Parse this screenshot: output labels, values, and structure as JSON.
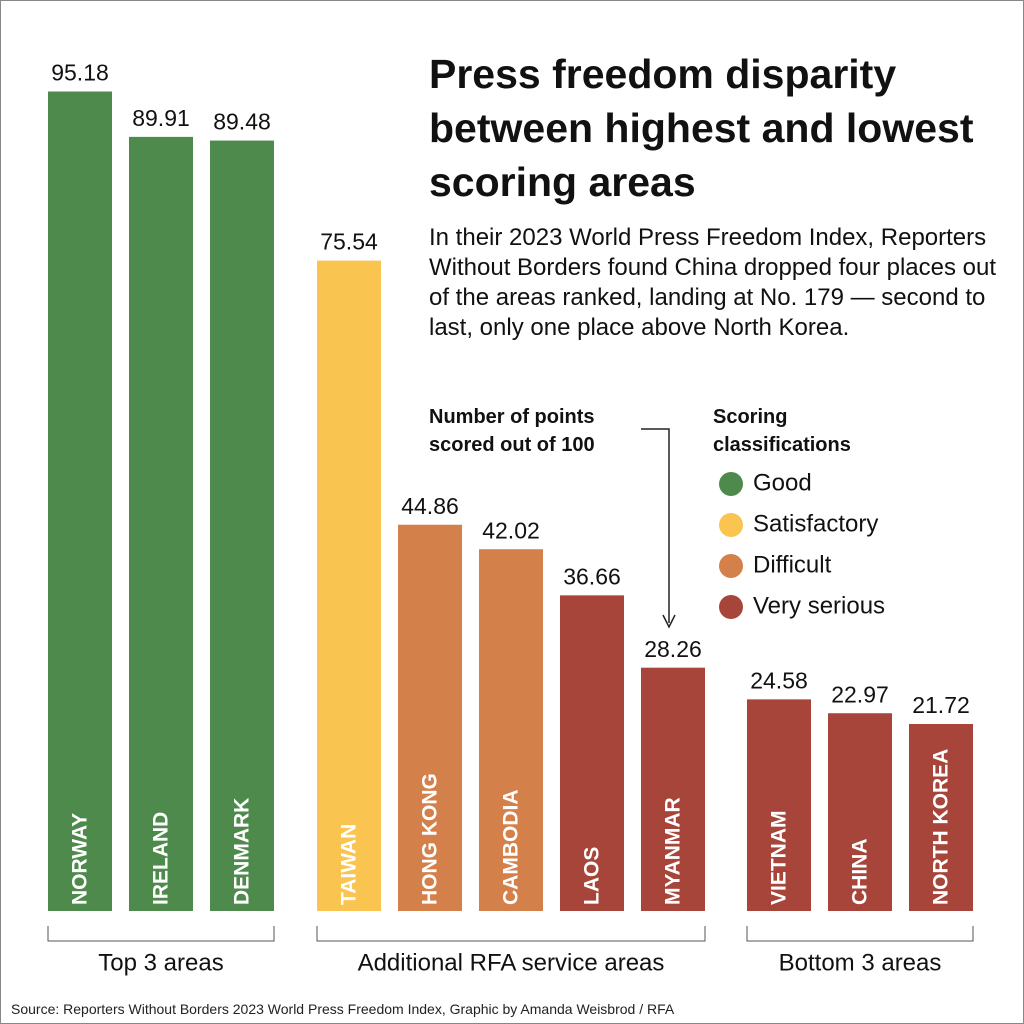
{
  "chart_data": {
    "type": "bar",
    "title": "Press freedom disparity between highest and lowest scoring areas",
    "subtitle": "In their 2023 World Press Freedom Index, Reporters Without Borders found China dropped four places out of the areas ranked, landing at No. 179 — second to last, only one place above North Korea.",
    "annotation": "Number of points scored out of 100",
    "categories": [
      "NORWAY",
      "IRELAND",
      "DENMARK",
      "TAIWAN",
      "HONG KONG",
      "CAMBODIA",
      "LAOS",
      "MYANMAR",
      "VIETNAM",
      "CHINA",
      "NORTH KOREA"
    ],
    "values": [
      95.18,
      89.91,
      89.48,
      75.54,
      44.86,
      42.02,
      36.66,
      28.26,
      24.58,
      22.97,
      21.72
    ],
    "colors": [
      "#4e8a4b",
      "#4e8a4b",
      "#4e8a4b",
      "#f9c44f",
      "#d3804a",
      "#d3804a",
      "#a8453a",
      "#a8453a",
      "#a8453a",
      "#a8453a",
      "#a8453a"
    ],
    "ylim": [
      0,
      100
    ],
    "legend": {
      "title": "Scoring classifications",
      "items": [
        {
          "name": "Good",
          "color": "#4e8a4b"
        },
        {
          "name": "Satisfactory",
          "color": "#f9c44f"
        },
        {
          "name": "Difficult",
          "color": "#d3804a"
        },
        {
          "name": "Very serious",
          "color": "#a8453a"
        }
      ]
    },
    "groups": [
      {
        "label": "Top 3 areas",
        "members": [
          "NORWAY",
          "IRELAND",
          "DENMARK"
        ]
      },
      {
        "label": "Additional RFA service areas",
        "members": [
          "TAIWAN",
          "HONG KONG",
          "CAMBODIA",
          "LAOS",
          "MYANMAR"
        ]
      },
      {
        "label": "Bottom 3 areas",
        "members": [
          "VIETNAM",
          "CHINA",
          "NORTH KOREA"
        ]
      }
    ],
    "source": "Source: Reporters Without Borders 2023 World Press Freedom Index, Graphic by Amanda Weisbrod / RFA"
  }
}
